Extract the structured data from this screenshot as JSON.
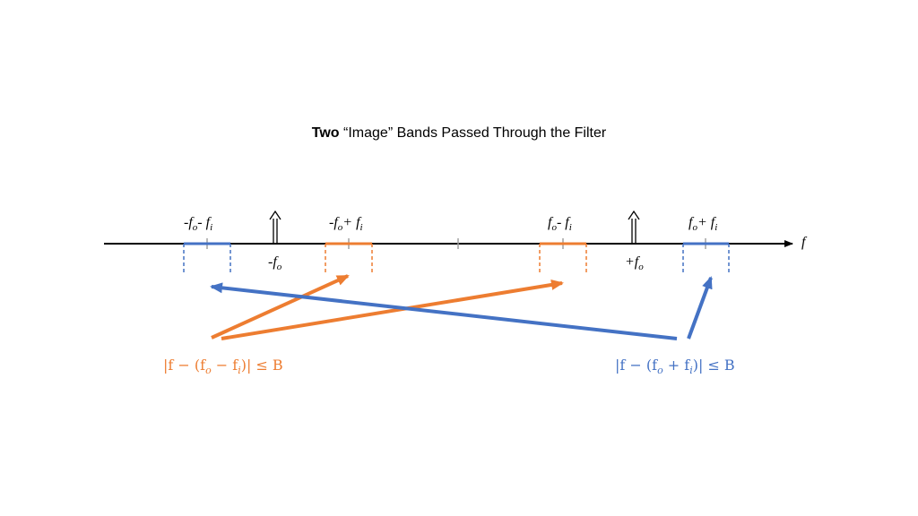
{
  "title": {
    "bold": "Two",
    "rest": " “Image” Bands Passed Through the Filter"
  },
  "colors": {
    "orange": "#ED7D31",
    "blue": "#4472C4",
    "axis": "#000000",
    "tick": "#a0a0a0"
  },
  "axis": {
    "label": "f"
  },
  "labels": {
    "neg_fo_minus_fi": {
      "a": "-f",
      "a_sub": "o",
      "op": "- f",
      "b_sub": "i"
    },
    "neg_fo_plus_fi": {
      "a": "-f",
      "a_sub": "o",
      "op": "+ f",
      "b_sub": "i"
    },
    "fo_minus_fi": {
      "a": "f",
      "a_sub": "o",
      "op": "- f",
      "b_sub": "i"
    },
    "fo_plus_fi": {
      "a": "f",
      "a_sub": "o",
      "op": "+ f",
      "b_sub": "i"
    },
    "neg_fo": {
      "a": "-f",
      "a_sub": "o"
    },
    "pos_fo": {
      "a": "+f",
      "a_sub": "o"
    }
  },
  "inequalities": {
    "orange": {
      "pre": "|f − (f",
      "s1": "o",
      "mid": " − f",
      "s2": "i",
      "post": ")| ≤ B"
    },
    "blue": {
      "pre": "|f − (f",
      "s1": "o",
      "mid": " + f",
      "s2": "i",
      "post": ")| ≤ B"
    }
  }
}
